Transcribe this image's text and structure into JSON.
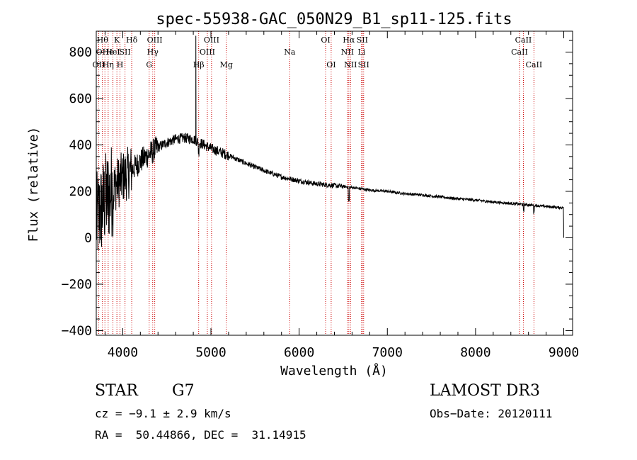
{
  "chart_data": {
    "type": "line",
    "title": "spec-55938-GAC_050N29_B1_sp11-125.fits",
    "xlabel": "Wavelength (Å)",
    "ylabel": "Flux (relative)",
    "xlim": [
      3700,
      9100
    ],
    "ylim": [
      -420,
      890
    ],
    "xticks": [
      4000,
      5000,
      6000,
      7000,
      8000,
      9000
    ],
    "yticks": [
      -400,
      -200,
      0,
      200,
      400,
      600,
      800
    ],
    "grid": false,
    "series": [
      {
        "name": "flux",
        "continuum": [
          [
            3700,
            70
          ],
          [
            3800,
            160
          ],
          [
            3900,
            220
          ],
          [
            4000,
            260
          ],
          [
            4100,
            290
          ],
          [
            4200,
            330
          ],
          [
            4300,
            360
          ],
          [
            4400,
            390
          ],
          [
            4500,
            410
          ],
          [
            4600,
            425
          ],
          [
            4700,
            430
          ],
          [
            4800,
            425
          ],
          [
            4900,
            405
          ],
          [
            5000,
            385
          ],
          [
            5200,
            355
          ],
          [
            5400,
            320
          ],
          [
            5600,
            290
          ],
          [
            5800,
            262
          ],
          [
            6000,
            245
          ],
          [
            6200,
            232
          ],
          [
            6400,
            225
          ],
          [
            6600,
            217
          ],
          [
            6800,
            205
          ],
          [
            7000,
            200
          ],
          [
            7200,
            190
          ],
          [
            7400,
            184
          ],
          [
            7600,
            176
          ],
          [
            7800,
            168
          ],
          [
            8000,
            162
          ],
          [
            8200,
            154
          ],
          [
            8400,
            148
          ],
          [
            8600,
            142
          ],
          [
            8800,
            135
          ],
          [
            8950,
            130
          ]
        ],
        "features": [
          {
            "x": 4830,
            "y": 870,
            "note": "emission spike"
          },
          {
            "x": 6563,
            "y": 160,
            "note": "H-alpha absorption"
          },
          {
            "x": 8545,
            "y": 110,
            "note": "CaII absorption"
          },
          {
            "x": 8990,
            "y": 0,
            "note": "edge drop"
          }
        ]
      }
    ],
    "line_markers": [
      {
        "x": 3727,
        "label": "OII",
        "row": 2
      },
      {
        "x": 3770,
        "label": "Hθ",
        "row": 0
      },
      {
        "x": 3798,
        "label": "OHe",
        "row": 1
      },
      {
        "x": 3835,
        "label": "Hη",
        "row": 2
      },
      {
        "x": 3889,
        "label": "HeI",
        "row": 1
      },
      {
        "x": 3934,
        "label": "K",
        "row": 0
      },
      {
        "x": 3969,
        "label": "H",
        "row": 2
      },
      {
        "x": 4026,
        "label": "SII",
        "row": 1
      },
      {
        "x": 4102,
        "label": "Hδ",
        "row": 0
      },
      {
        "x": 4300,
        "label": "G",
        "row": 2
      },
      {
        "x": 4340,
        "label": "Hγ",
        "row": 1
      },
      {
        "x": 4363,
        "label": "OIII",
        "row": 0
      },
      {
        "x": 4861,
        "label": "Hβ",
        "row": 2
      },
      {
        "x": 4959,
        "label": "OIII",
        "row": 1
      },
      {
        "x": 5007,
        "label": "OIII",
        "row": 0
      },
      {
        "x": 5175,
        "label": "Mg",
        "row": 2
      },
      {
        "x": 5893,
        "label": "Na",
        "row": 1
      },
      {
        "x": 6300,
        "label": "OI",
        "row": 0
      },
      {
        "x": 6363,
        "label": "OI",
        "row": 2
      },
      {
        "x": 6548,
        "label": "NII",
        "row": 1
      },
      {
        "x": 6563,
        "label": "Hα",
        "row": 0
      },
      {
        "x": 6583,
        "label": "NII",
        "row": 2
      },
      {
        "x": 6708,
        "label": "Li",
        "row": 1
      },
      {
        "x": 6716,
        "label": "SII",
        "row": 0
      },
      {
        "x": 6731,
        "label": "SII",
        "row": 2
      },
      {
        "x": 8498,
        "label": "CaII",
        "row": 1
      },
      {
        "x": 8542,
        "label": "CaII",
        "row": 0
      },
      {
        "x": 8662,
        "label": "CaII",
        "row": 2
      }
    ],
    "colors": {
      "spectrum": "#000000",
      "marker": "#cc0000",
      "axis": "#000000"
    }
  },
  "info": {
    "class_label": "STAR",
    "subclass": "G7",
    "survey": "LAMOST DR3",
    "cz": "cz = −9.1 ± 2.9 km/s",
    "obs_date": "Obs−Date: 20120111",
    "coords": "RA =  50.44866, DEC =  31.14915"
  }
}
